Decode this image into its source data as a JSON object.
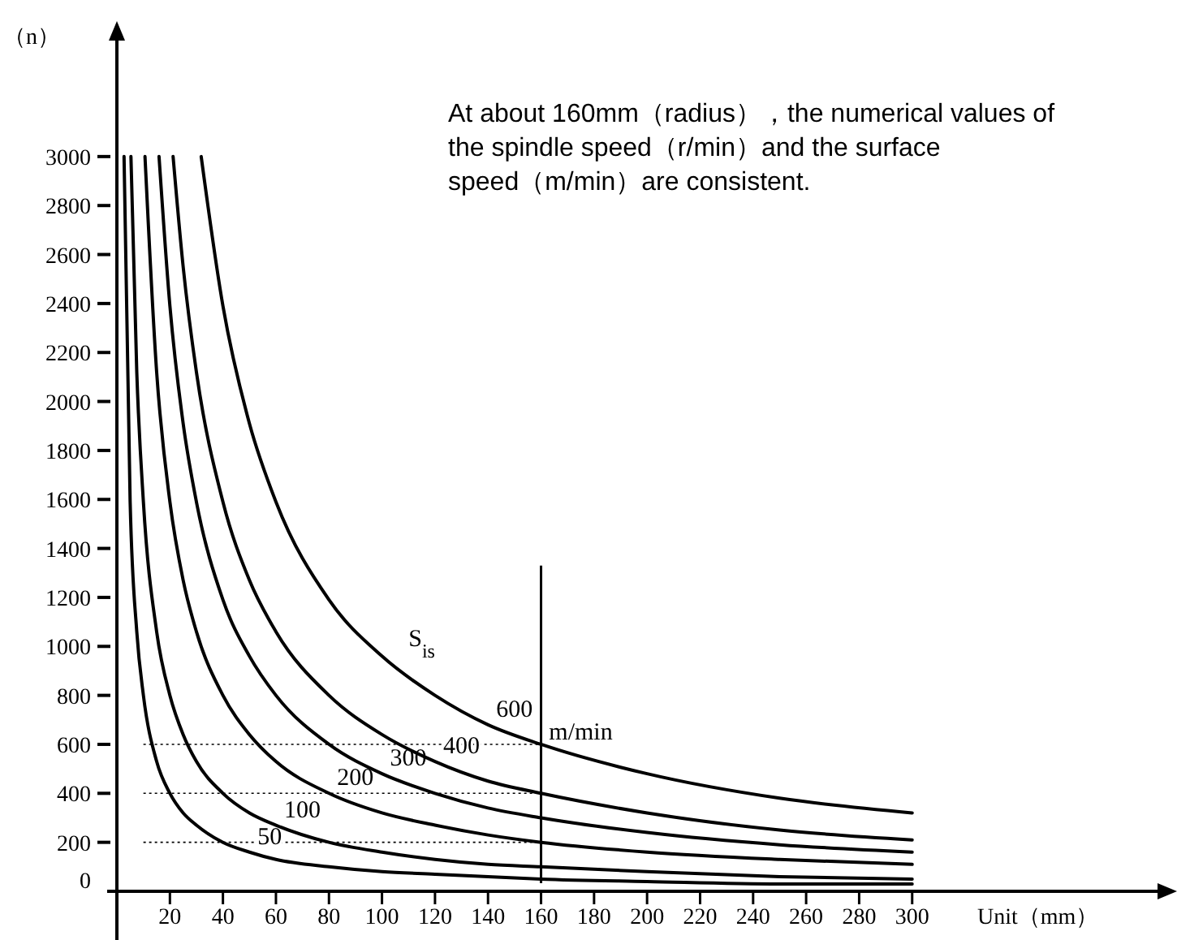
{
  "chart_data": {
    "type": "line",
    "xlabel": "Unit（mm）",
    "ylabel": "（n）",
    "xlim": [
      0,
      395
    ],
    "ylim": [
      0,
      3500
    ],
    "xticks": [
      20,
      40,
      60,
      80,
      100,
      120,
      140,
      160,
      180,
      200,
      220,
      240,
      260,
      280,
      300
    ],
    "yticks": [
      0,
      200,
      400,
      600,
      800,
      1000,
      1200,
      1400,
      1600,
      1800,
      2000,
      2200,
      2400,
      2600,
      2800,
      3000
    ],
    "grid": false,
    "marker": "none",
    "line_style": "solid",
    "series": [
      {
        "name": "50",
        "color": "#000000",
        "x": [
          2.7,
          5,
          7.5,
          10,
          15,
          20,
          25,
          30,
          40,
          50,
          60,
          80,
          100,
          120,
          140,
          160,
          200,
          250,
          300
        ],
        "values": [
          3000,
          1590,
          1060,
          800,
          530,
          400,
          320,
          270,
          200,
          160,
          130,
          100,
          80,
          70,
          60,
          50,
          40,
          30,
          30
        ]
      },
      {
        "name": "100",
        "color": "#000000",
        "x": [
          5.3,
          7.5,
          10,
          15,
          20,
          25,
          30,
          40,
          50,
          60,
          80,
          100,
          120,
          140,
          160,
          200,
          250,
          300
        ],
        "values": [
          3000,
          2120,
          1590,
          1060,
          800,
          640,
          530,
          400,
          320,
          270,
          200,
          160,
          130,
          110,
          100,
          80,
          60,
          50
        ]
      },
      {
        "name": "200",
        "color": "#000000",
        "x": [
          10.6,
          15,
          20,
          25,
          30,
          40,
          50,
          60,
          80,
          100,
          120,
          140,
          160,
          200,
          250,
          300
        ],
        "values": [
          3000,
          2120,
          1590,
          1270,
          1060,
          800,
          640,
          530,
          400,
          320,
          270,
          230,
          200,
          160,
          130,
          110
        ]
      },
      {
        "name": "300",
        "color": "#000000",
        "x": [
          15.9,
          20,
          25,
          30,
          40,
          50,
          60,
          80,
          100,
          120,
          140,
          160,
          200,
          250,
          300
        ],
        "values": [
          3000,
          2390,
          1910,
          1590,
          1190,
          960,
          800,
          600,
          480,
          400,
          340,
          300,
          240,
          190,
          160
        ]
      },
      {
        "name": "400",
        "color": "#000000",
        "x": [
          21.2,
          25,
          30,
          40,
          50,
          60,
          80,
          100,
          120,
          140,
          160,
          200,
          250,
          300
        ],
        "values": [
          3000,
          2550,
          2120,
          1590,
          1270,
          1060,
          800,
          640,
          530,
          450,
          400,
          320,
          250,
          210
        ]
      },
      {
        "name": "600",
        "color": "#000000",
        "x": [
          31.8,
          40,
          50,
          60,
          80,
          100,
          120,
          140,
          160,
          200,
          250,
          300
        ],
        "values": [
          3000,
          2390,
          1910,
          1590,
          1190,
          960,
          800,
          680,
          600,
          480,
          380,
          320
        ]
      }
    ],
    "ref_lines": [
      {
        "axis": "y",
        "value": 200,
        "line_style": "dotted"
      },
      {
        "axis": "y",
        "value": 400,
        "line_style": "dotted"
      },
      {
        "axis": "y",
        "value": 600,
        "line_style": "dotted"
      },
      {
        "axis": "x",
        "value": 160,
        "line_style": "solid"
      }
    ],
    "annotations": [
      "At about 160mm（radius），the numerical values of the spindle speed（r/min）and the surface speed（m/min）are consistent.",
      "S$_{is}$",
      "m/min"
    ]
  }
}
